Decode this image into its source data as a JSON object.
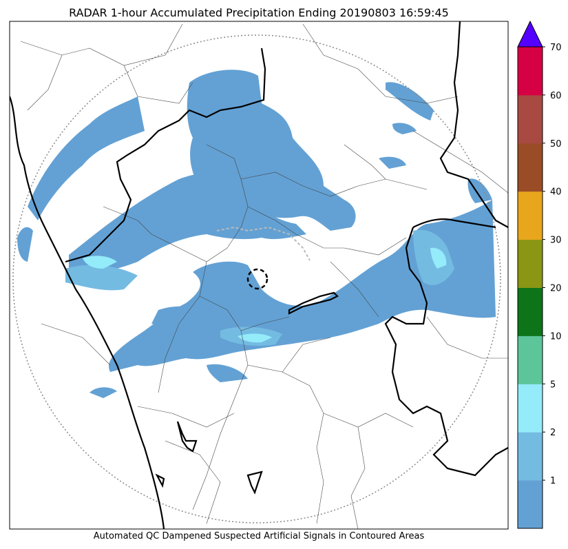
{
  "title": "RADAR 1-hour Accumulated Precipitation Ending 20190803 16:59:45",
  "caption": "Automated QC Dampened Suspected Artificial Signals in Contoured Areas",
  "colorbar": {
    "extend_color": "#5500ff",
    "bins": [
      {
        "color": "#63a1d4",
        "label": "1"
      },
      {
        "color": "#74bbe2",
        "label": "2"
      },
      {
        "color": "#94ebfa",
        "label": "5"
      },
      {
        "color": "#5dc59a",
        "label": "10"
      },
      {
        "color": "#0d741a",
        "label": "20"
      },
      {
        "color": "#8a9614",
        "label": "30"
      },
      {
        "color": "#e8a61c",
        "label": "40"
      },
      {
        "color": "#9a4c26",
        "label": "50"
      },
      {
        "color": "#a84a42",
        "label": "60"
      },
      {
        "color": "#d60045",
        "label": "70"
      }
    ]
  },
  "precip_colors": {
    "light": "#63a1d4",
    "moderate": "#74bbe2",
    "heavy": "#94ebfa"
  },
  "range_ring_color": "#888888"
}
